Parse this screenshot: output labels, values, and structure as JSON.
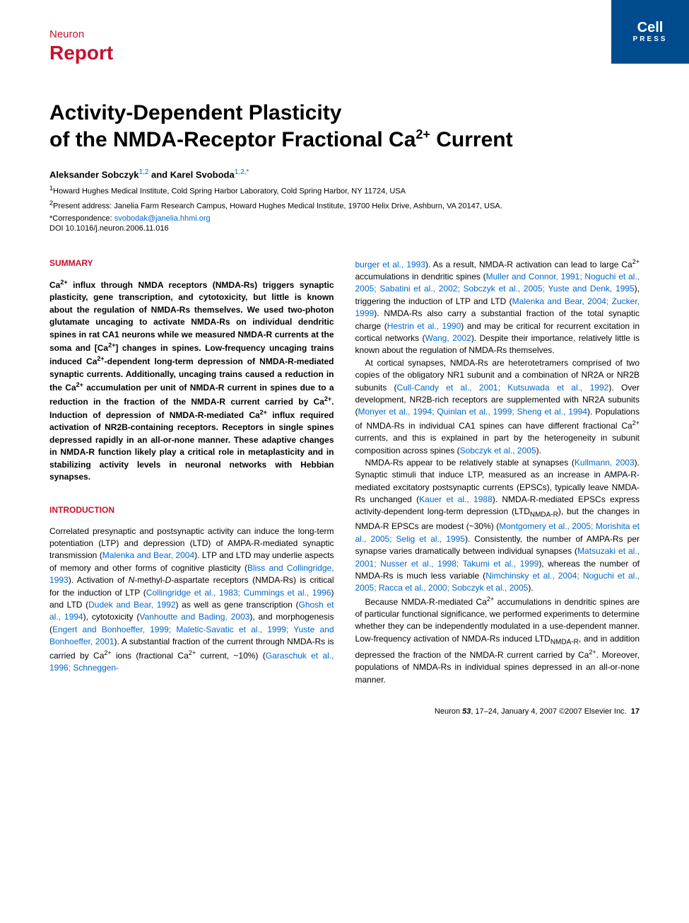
{
  "journal": "Neuron",
  "articleType": "Report",
  "cellPress": {
    "name": "Cell",
    "sub": "PRESS"
  },
  "title": {
    "line1": "Activity-Dependent Plasticity",
    "line2_a": "of the NMDA-Receptor Fractional Ca",
    "line2_sup": "2+",
    "line2_b": " Current"
  },
  "authors": {
    "a1_name": "Aleksander Sobczyk",
    "a1_sup": "1,2",
    "sep": " and ",
    "a2_name": "Karel Svoboda",
    "a2_sup": "1,2,*"
  },
  "affiliations": {
    "aff1_sup": "1",
    "aff1": "Howard Hughes Medical Institute, Cold Spring Harbor Laboratory, Cold Spring Harbor, NY 11724, USA",
    "aff2_sup": "2",
    "aff2": "Present address: Janelia Farm Research Campus, Howard Hughes Medical Institute, 19700 Helix Drive, Ashburn, VA 20147, USA."
  },
  "correspondence": {
    "label": "*Correspondence: ",
    "email": "svobodak@janelia.hhmi.org"
  },
  "doi": "DOI 10.1016/j.neuron.2006.11.016",
  "headings": {
    "summary": "SUMMARY",
    "introduction": "INTRODUCTION"
  },
  "summary": {
    "p1a": "Ca",
    "p1b": " influx through NMDA receptors (NMDA-Rs) triggers synaptic plasticity, gene transcription, and cytotoxicity, but little is known about the regulation of NMDA-Rs themselves. We used two-photon glutamate uncaging to activate NMDA-Rs on individual dendritic spines in rat CA1 neurons while we measured NMDA-R currents at the soma and [Ca",
    "p1c": "] changes in spines. Low-frequency uncaging trains induced Ca",
    "p1d": "-dependent long-term depression of NMDA-R-mediated synaptic currents. Additionally, uncaging trains caused a reduction in the Ca",
    "p1e": " accumulation per unit of NMDA-R current in spines due to a reduction in the fraction of the NMDA-R current carried by Ca",
    "p1f": ". Induction of depression of NMDA-R-mediated Ca",
    "p1g": " influx required activation of NR2B-containing receptors. Receptors in single spines depressed rapidly in an all-or-none manner. These adaptive changes in NMDA-R function likely play a critical role in metaplasticity and in stabilizing activity levels in neuronal networks with Hebbian synapses.",
    "sup": "2+"
  },
  "intro": {
    "p1_a": "Correlated presynaptic and postsynaptic activity can induce the long-term potentiation (LTP) and depression (LTD) of AMPA-R-mediated synaptic transmission (",
    "c1": "Malenka and Bear, 2004",
    "p1_b": "). LTP and LTD may underlie aspects of memory and other forms of cognitive plasticity (",
    "c2": "Bliss and Collingridge, 1993",
    "p1_c": "). Activation of ",
    "nmda_i": "N",
    "p1_c2": "-methyl-",
    "nmda_d": "D",
    "p1_c3": "-aspartate receptors (NMDA-Rs) is critical for the induction of LTP (",
    "c3": "Collingridge et al., 1983; Cummings et al., 1996",
    "p1_d": ") and LTD (",
    "c4": "Dudek and Bear, 1992",
    "p1_e": ") as well as gene transcription (",
    "c5": "Ghosh et al., 1994",
    "p1_f": "), cytotoxicity (",
    "c6": "Vanhoutte and Bading, 2003",
    "p1_g": "), and morphogenesis (",
    "c7": "Engert and Bonhoeffer, 1999; Maletic-Savatic et al., 1999; Yuste and Bonhoeffer, 2001",
    "p1_h": "). A substantial fraction of the current through NMDA-Rs is carried by Ca",
    "p1_i": " ions (fractional Ca",
    "p1_j": " current, ~10%) (",
    "c8": "Garaschuk et al., 1996; Schneggen-",
    "sup": "2+"
  },
  "col2": {
    "p1_a": "burger et al., 1993",
    "p1_b": "). As a result, NMDA-R activation can lead to large Ca",
    "p1_c": " accumulations in dendritic spines (",
    "c1": "Muller and Connor, 1991; Noguchi et al., 2005; Sabatini et al., 2002; Sobczyk et al., 2005; Yuste and Denk, 1995",
    "p1_d": "), triggering the induction of LTP and LTD (",
    "c2": "Malenka and Bear, 2004; Zucker, 1999",
    "p1_e": "). NMDA-Rs also carry a substantial fraction of the total synaptic charge (",
    "c3": "Hestrin et al., 1990",
    "p1_f": ") and may be critical for recurrent excitation in cortical networks (",
    "c4": "Wang, 2002",
    "p1_g": "). Despite their importance, relatively little is known about the regulation of NMDA-Rs themselves.",
    "p2_a": "At cortical synapses, NMDA-Rs are heterotetramers comprised of two copies of the obligatory NR1 subunit and a combination of NR2A or NR2B subunits (",
    "c5": "Cull-Candy et al., 2001; Kutsuwada et al., 1992",
    "p2_b": "). Over development, NR2B-rich receptors are supplemented with NR2A subunits (",
    "c6": "Monyer et al., 1994; Quinlan et al., 1999; Sheng et al., 1994",
    "p2_c": "). Populations of NMDA-Rs in individual CA1 spines can have different fractional Ca",
    "p2_d": " currents, and this is explained in part by the heterogeneity in subunit composition across spines (",
    "c7": "Sobczyk et al., 2005",
    "p2_e": ").",
    "p3_a": "NMDA-Rs appear to be relatively stable at synapses (",
    "c8": "Kullmann, 2003",
    "p3_b": "). Synaptic stimuli that induce LTP, measured as an increase in AMPA-R-mediated excitatory postsynaptic currents (EPSCs), typically leave NMDA-Rs unchanged (",
    "c9": "Kauer et al., 1988",
    "p3_c": "). NMDA-R-mediated EPSCs express activity-dependent long-term depression (LTD",
    "p3_sub": "NMDA-R",
    "p3_d": "), but the changes in NMDA-R EPSCs are modest (~30%) (",
    "c10": "Montgomery et al., 2005; Morishita et al., 2005; Selig et al., 1995",
    "p3_e": "). Consistently, the number of AMPA-Rs per synapse varies dramatically between individual synapses (",
    "c11": "Matsuzaki et al., 2001; Nusser et al., 1998; Takumi et al., 1999",
    "p3_f": "), whereas the number of NMDA-Rs is much less variable (",
    "c12": "Nimchinsky et al., 2004; Noguchi et al., 2005; Racca et al., 2000; Sobczyk et al., 2005",
    "p3_g": ").",
    "p4_a": "Because NMDA-R-mediated Ca",
    "p4_b": " accumulations in dendritic spines are of particular functional significance, we performed experiments to determine whether they can be independently modulated in a use-dependent manner. Low-frequency activation of NMDA-Rs induced LTD",
    "p4_sub": "NMDA-R",
    "p4_c": ", and in addition depressed the fraction of the NMDA-R current carried by Ca",
    "p4_d": ". Moreover, populations of NMDA-Rs in individual spines depressed in an all-or-none manner.",
    "sup": "2+"
  },
  "footer": {
    "issue": "Neuron ",
    "vol": "53",
    "pages": ", 17–24, January 4, 2007 ©2007 Elsevier Inc.",
    "page": "17"
  },
  "colors": {
    "brand_red": "#c8102e",
    "brand_blue": "#004b8d",
    "link_blue": "#0066cc"
  }
}
